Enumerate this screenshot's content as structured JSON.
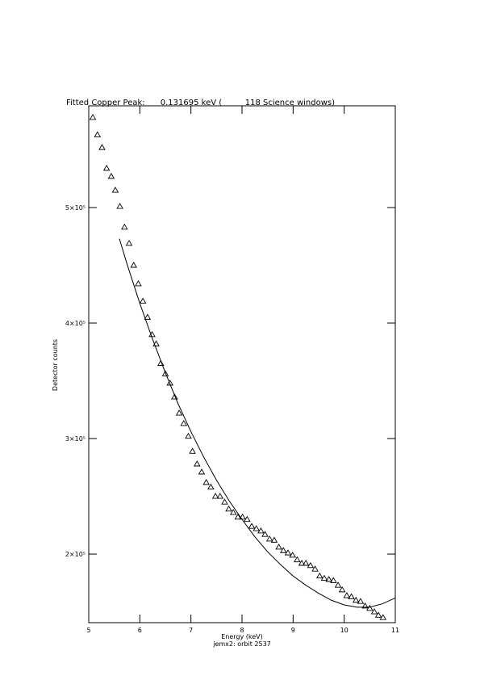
{
  "chart_data": {
    "type": "scatter",
    "title": "Fitted Copper Peak:      0.131695 keV (         118 Science windows)",
    "x_label": "Energy (keV)",
    "subtitle": "jemx2: orbit 2537",
    "y_label": "Detector counts",
    "xlim": [
      5,
      11
    ],
    "xticks": [
      5,
      6,
      7,
      8,
      9,
      10,
      11
    ],
    "ylim": [
      140600,
      588100
    ],
    "yticks": [
      {
        "value": 200000,
        "label": "2×10⁵"
      },
      {
        "value": 300000,
        "label": "3×10⁵"
      },
      {
        "value": 400000,
        "label": "4×10⁵"
      },
      {
        "value": 500000,
        "label": "5×10⁵"
      }
    ],
    "series": [
      {
        "style": "markers",
        "color": "#000000",
        "x": [
          5.08,
          5.17,
          5.26,
          5.35,
          5.44,
          5.52,
          5.61,
          5.7,
          5.79,
          5.88,
          5.97,
          6.06,
          6.15,
          6.24,
          6.32,
          6.41,
          6.5,
          6.59,
          6.68,
          6.77,
          6.86,
          6.95,
          7.03,
          7.12,
          7.21,
          7.3,
          7.39,
          7.48,
          7.57,
          7.66,
          7.74,
          7.83,
          7.92,
          8.01,
          8.1,
          8.19,
          8.28,
          8.37,
          8.45,
          8.54,
          8.63,
          8.72,
          8.81,
          8.9,
          8.99,
          9.08,
          9.17,
          9.25,
          9.34,
          9.43,
          9.52,
          9.61,
          9.7,
          9.79,
          9.88,
          9.96,
          10.05,
          10.14,
          10.23,
          10.32,
          10.41,
          10.5,
          10.59,
          10.67,
          10.76
        ],
        "values": [
          578000,
          563000,
          552000,
          534000,
          527000,
          515000,
          501000,
          483000,
          469000,
          450000,
          434000,
          419000,
          405000,
          390000,
          382000,
          365000,
          356000,
          348000,
          336000,
          322000,
          313000,
          302000,
          289000,
          278000,
          271000,
          262000,
          258000,
          250000,
          250000,
          245000,
          239000,
          236000,
          232000,
          232000,
          230000,
          224000,
          222000,
          220000,
          217000,
          213000,
          212000,
          206000,
          203000,
          201000,
          199000,
          195000,
          192000,
          192000,
          190000,
          187000,
          181000,
          179000,
          178000,
          177000,
          173000,
          169000,
          164000,
          163000,
          160000,
          159000,
          155000,
          153000,
          150000,
          147000,
          145000
        ]
      },
      {
        "style": "line",
        "color": "#000000",
        "x": [
          5.6,
          5.75,
          6.0,
          6.25,
          6.5,
          6.75,
          7.0,
          7.25,
          7.5,
          7.75,
          8.0,
          8.25,
          8.5,
          8.75,
          9.0,
          9.25,
          9.5,
          9.75,
          10.0,
          10.25,
          10.5,
          10.75,
          11.0
        ],
        "values": [
          473000,
          451000,
          417000,
          386000,
          357000,
          330000,
          306000,
          284000,
          264000,
          246000,
          230000,
          215000,
          202000,
          191000,
          181000,
          173000,
          166000,
          160000,
          156000,
          154000,
          154000,
          157000,
          162000
        ]
      }
    ]
  }
}
